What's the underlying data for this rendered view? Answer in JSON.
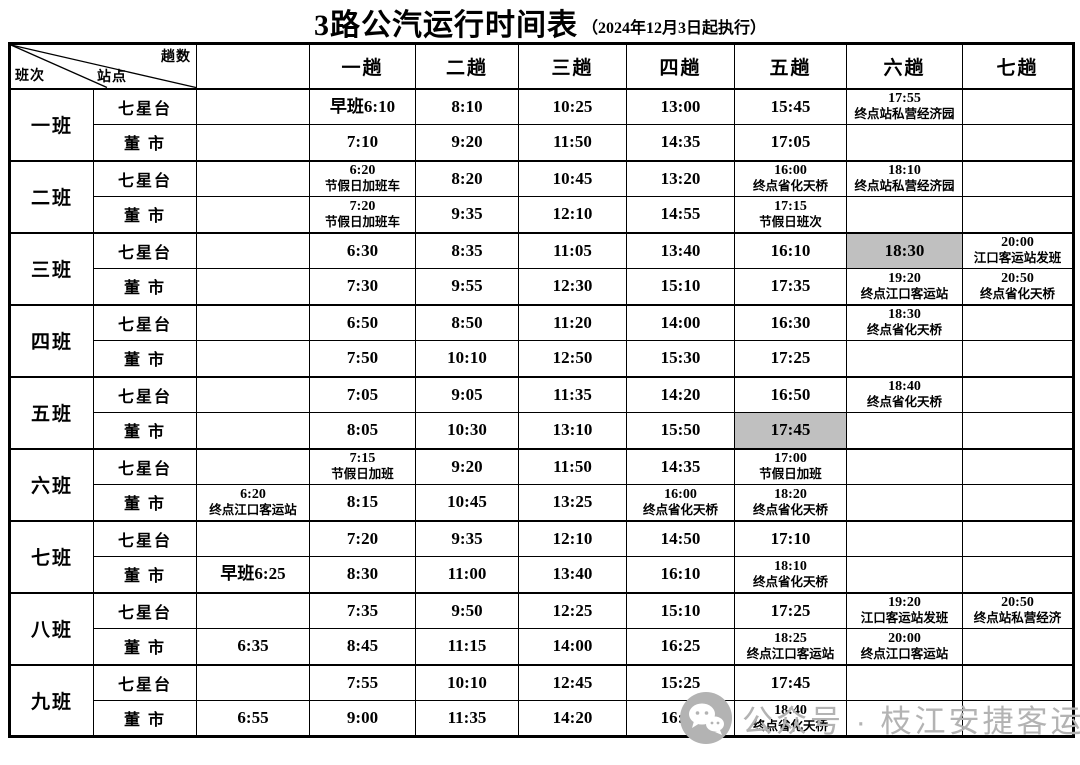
{
  "title": {
    "main": "3路公汽运行时间表",
    "sub": "（2024年12月3日起执行）"
  },
  "table": {
    "corner": {
      "top_right": "趟数",
      "middle": "站点",
      "bottom_left": "班次"
    },
    "trip_headers": [
      "一趟",
      "二趟",
      "三趟",
      "四趟",
      "五趟",
      "六趟",
      "七趟"
    ],
    "highlight_color": "#c0c0c0",
    "shifts": [
      {
        "name": "一班",
        "rows": [
          {
            "station": "七星台",
            "cells": [
              {},
              {
                "t": "早班6:10"
              },
              {
                "t": "8:10"
              },
              {
                "t": "10:25"
              },
              {
                "t": "13:00"
              },
              {
                "t": "15:45"
              },
              {
                "t": "17:55",
                "n": "终点站私营经济园"
              },
              {}
            ]
          },
          {
            "station": "董 市",
            "cells": [
              {},
              {
                "t": "7:10"
              },
              {
                "t": "9:20"
              },
              {
                "t": "11:50"
              },
              {
                "t": "14:35"
              },
              {
                "t": "17:05"
              },
              {},
              {}
            ]
          }
        ]
      },
      {
        "name": "二班",
        "rows": [
          {
            "station": "七星台",
            "cells": [
              {},
              {
                "t": "6:20",
                "n": "节假日加班车"
              },
              {
                "t": "8:20"
              },
              {
                "t": "10:45"
              },
              {
                "t": "13:20"
              },
              {
                "t": "16:00",
                "n": "终点省化天桥"
              },
              {
                "t": "18:10",
                "n": "终点站私营经济园"
              },
              {}
            ]
          },
          {
            "station": "董 市",
            "cells": [
              {},
              {
                "t": "7:20",
                "n": "节假日加班车"
              },
              {
                "t": "9:35"
              },
              {
                "t": "12:10"
              },
              {
                "t": "14:55"
              },
              {
                "t": "17:15",
                "n": "节假日班次"
              },
              {},
              {}
            ]
          }
        ]
      },
      {
        "name": "三班",
        "rows": [
          {
            "station": "七星台",
            "cells": [
              {},
              {
                "t": "6:30"
              },
              {
                "t": "8:35"
              },
              {
                "t": "11:05"
              },
              {
                "t": "13:40"
              },
              {
                "t": "16:10"
              },
              {
                "t": "18:30",
                "hl": true
              },
              {
                "t": "20:00",
                "n": "江口客运站发班"
              }
            ]
          },
          {
            "station": "董 市",
            "cells": [
              {},
              {
                "t": "7:30"
              },
              {
                "t": "9:55"
              },
              {
                "t": "12:30"
              },
              {
                "t": "15:10"
              },
              {
                "t": "17:35"
              },
              {
                "t": "19:20",
                "n": "终点江口客运站"
              },
              {
                "t": "20:50",
                "n": "终点省化天桥"
              }
            ]
          }
        ]
      },
      {
        "name": "四班",
        "rows": [
          {
            "station": "七星台",
            "cells": [
              {},
              {
                "t": "6:50"
              },
              {
                "t": "8:50"
              },
              {
                "t": "11:20"
              },
              {
                "t": "14:00"
              },
              {
                "t": "16:30"
              },
              {
                "t": "18:30",
                "n": "终点省化天桥"
              },
              {}
            ]
          },
          {
            "station": "董 市",
            "cells": [
              {},
              {
                "t": "7:50"
              },
              {
                "t": "10:10"
              },
              {
                "t": "12:50"
              },
              {
                "t": "15:30"
              },
              {
                "t": "17:25"
              },
              {},
              {}
            ]
          }
        ]
      },
      {
        "name": "五班",
        "rows": [
          {
            "station": "七星台",
            "cells": [
              {},
              {
                "t": "7:05"
              },
              {
                "t": "9:05"
              },
              {
                "t": "11:35"
              },
              {
                "t": "14:20"
              },
              {
                "t": "16:50"
              },
              {
                "t": "18:40",
                "n": "终点省化天桥"
              },
              {}
            ]
          },
          {
            "station": "董 市",
            "cells": [
              {},
              {
                "t": "8:05"
              },
              {
                "t": "10:30"
              },
              {
                "t": "13:10"
              },
              {
                "t": "15:50"
              },
              {
                "t": "17:45",
                "hl": true
              },
              {},
              {}
            ]
          }
        ]
      },
      {
        "name": "六班",
        "rows": [
          {
            "station": "七星台",
            "cells": [
              {},
              {
                "t": "7:15",
                "n": "节假日加班"
              },
              {
                "t": "9:20"
              },
              {
                "t": "11:50"
              },
              {
                "t": "14:35"
              },
              {
                "t": "17:00",
                "n": "节假日加班"
              },
              {},
              {}
            ]
          },
          {
            "station": "董 市",
            "cells": [
              {
                "t": "6:20",
                "n": "终点江口客运站"
              },
              {
                "t": "8:15"
              },
              {
                "t": "10:45"
              },
              {
                "t": "13:25"
              },
              {
                "t": "16:00",
                "n": "终点省化天桥"
              },
              {
                "t": "18:20",
                "n": "终点省化天桥"
              },
              {},
              {}
            ]
          }
        ]
      },
      {
        "name": "七班",
        "rows": [
          {
            "station": "七星台",
            "cells": [
              {},
              {
                "t": "7:20"
              },
              {
                "t": "9:35"
              },
              {
                "t": "12:10"
              },
              {
                "t": "14:50"
              },
              {
                "t": "17:10"
              },
              {},
              {}
            ]
          },
          {
            "station": "董 市",
            "cells": [
              {
                "t": "早班6:25"
              },
              {
                "t": "8:30"
              },
              {
                "t": "11:00"
              },
              {
                "t": "13:40"
              },
              {
                "t": "16:10"
              },
              {
                "t": "18:10",
                "n": "终点省化天桥"
              },
              {},
              {}
            ]
          }
        ]
      },
      {
        "name": "八班",
        "rows": [
          {
            "station": "七星台",
            "cells": [
              {},
              {
                "t": "7:35"
              },
              {
                "t": "9:50"
              },
              {
                "t": "12:25"
              },
              {
                "t": "15:10"
              },
              {
                "t": "17:25"
              },
              {
                "t": "19:20",
                "n": "江口客运站发班"
              },
              {
                "t": "20:50",
                "n": "终点站私营经济"
              }
            ]
          },
          {
            "station": "董 市",
            "cells": [
              {
                "t": "6:35"
              },
              {
                "t": "8:45"
              },
              {
                "t": "11:15"
              },
              {
                "t": "14:00"
              },
              {
                "t": "16:25"
              },
              {
                "t": "18:25",
                "n": "终点江口客运站"
              },
              {
                "t": "20:00",
                "n": "终点江口客运站"
              },
              {}
            ]
          }
        ]
      },
      {
        "name": "九班",
        "rows": [
          {
            "station": "七星台",
            "cells": [
              {},
              {
                "t": "7:55"
              },
              {
                "t": "10:10"
              },
              {
                "t": "12:45"
              },
              {
                "t": "15:25"
              },
              {
                "t": "17:45"
              },
              {},
              {}
            ]
          },
          {
            "station": "董 市",
            "cells": [
              {
                "t": "6:55"
              },
              {
                "t": "9:00"
              },
              {
                "t": "11:35"
              },
              {
                "t": "14:20"
              },
              {
                "t": "16:45"
              },
              {
                "t": "18:40",
                "n": "终点省化天桥"
              },
              {},
              {}
            ]
          }
        ]
      }
    ]
  },
  "watermark": {
    "icon": "wechat-icon",
    "text": "公众号 · 枝江安捷客运"
  }
}
